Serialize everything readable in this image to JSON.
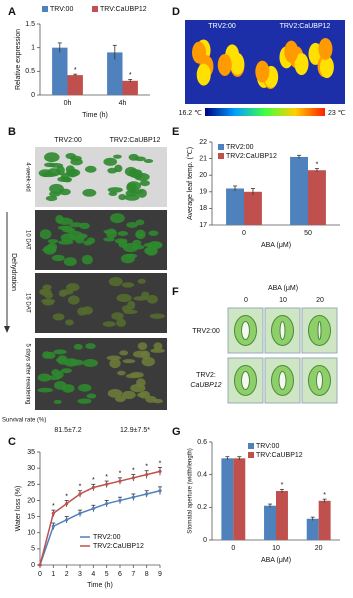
{
  "chart_data": [
    {
      "panel": "A",
      "type": "bar",
      "ylabel": "Relative expression",
      "xlabel": "Time (h)",
      "categories": [
        "0h",
        "4h"
      ],
      "ylim": [
        0,
        1.5
      ],
      "yticks": [
        0,
        0.5,
        1,
        1.5
      ],
      "series": [
        {
          "name": "TRV:00",
          "color": "#4f81bd",
          "values": [
            1.0,
            0.9
          ],
          "errors": [
            0.1,
            0.15
          ]
        },
        {
          "name": "TRV:CaUBP12",
          "color": "#c0504d",
          "values": [
            0.42,
            0.3
          ],
          "errors": [
            0.02,
            0.03
          ],
          "annotations": [
            "*",
            "*"
          ]
        }
      ]
    },
    {
      "panel": "E",
      "type": "bar",
      "ylabel": "Average leaf temp. (℃)",
      "xlabel": "ABA (μM)",
      "categories": [
        "0",
        "50"
      ],
      "ylim": [
        17,
        22
      ],
      "yticks": [
        17,
        18,
        19,
        20,
        21,
        22
      ],
      "series": [
        {
          "name": "TRV2:00",
          "color": "#4f81bd",
          "values": [
            19.2,
            21.1
          ],
          "errors": [
            0.15,
            0.1
          ]
        },
        {
          "name": "TRV2:CaUBP12",
          "color": "#c0504d",
          "values": [
            19.0,
            20.3
          ],
          "errors": [
            0.2,
            0.1
          ],
          "annotations": [
            null,
            "*"
          ]
        }
      ]
    },
    {
      "panel": "C",
      "type": "line",
      "ylabel": "Water loss (%)",
      "xlabel": "Time (h)",
      "x": [
        0,
        1,
        2,
        3,
        4,
        5,
        6,
        7,
        8,
        9
      ],
      "xlim": [
        0,
        9
      ],
      "xticks": [
        0,
        1,
        2,
        3,
        4,
        5,
        6,
        7,
        8,
        9
      ],
      "ylim": [
        0,
        35
      ],
      "yticks": [
        0,
        5,
        10,
        15,
        20,
        25,
        30,
        35
      ],
      "series": [
        {
          "name": "TRV2:00",
          "color": "#4f81bd",
          "values": [
            0,
            12,
            14,
            16,
            17.5,
            19,
            20,
            21,
            22,
            23
          ],
          "errors": [
            0,
            1,
            1,
            1,
            1,
            1,
            1,
            1,
            1,
            1.2
          ]
        },
        {
          "name": "TRV2:CaUBP12",
          "color": "#c0504d",
          "values": [
            0,
            16,
            19,
            22,
            24,
            25,
            26,
            27,
            28,
            29
          ],
          "errors": [
            0,
            1,
            1,
            1,
            1,
            1,
            1,
            1,
            1.2,
            1.2
          ],
          "annotations": [
            null,
            "*",
            "*",
            "*",
            "*",
            "*",
            "*",
            "*",
            "*",
            "*"
          ]
        }
      ]
    },
    {
      "panel": "G",
      "type": "bar",
      "ylabel": "Stomatal aperture (width/length)",
      "xlabel": "ABA (μM)",
      "categories": [
        "0",
        "10",
        "20"
      ],
      "ylim": [
        0,
        0.6
      ],
      "yticks": [
        0,
        0.2,
        0.4,
        0.6
      ],
      "series": [
        {
          "name": "TRV:00",
          "color": "#4f81bd",
          "values": [
            0.5,
            0.21,
            0.13
          ],
          "errors": [
            0.01,
            0.01,
            0.01
          ]
        },
        {
          "name": "TRV:CaUBP12",
          "color": "#c0504d",
          "values": [
            0.5,
            0.3,
            0.24
          ],
          "errors": [
            0.01,
            0.01,
            0.01
          ],
          "annotations": [
            null,
            "*",
            "*"
          ]
        }
      ]
    }
  ],
  "images": {
    "B": {
      "panel": "B",
      "columns": [
        "TRV2:00",
        "TRV2:CaUBP12"
      ],
      "rows": [
        "4-week-old",
        "10 DAT",
        "15 DAT",
        "5 days after rewatering"
      ],
      "group": "Dehydration",
      "survival_label": "Survival rate (%)",
      "survival": [
        "81.5±7.2",
        "12.9±7.5*"
      ]
    },
    "D": {
      "panel": "D",
      "columns": [
        "TRV2:00",
        "TRV2:CaUBP12"
      ],
      "scale": [
        "16.2 ℃",
        "23 ℃"
      ]
    },
    "F": {
      "panel": "F",
      "axis": "ABA (μM)",
      "columns": [
        "0",
        "10",
        "20"
      ],
      "rows": [
        [
          "TRV2:00"
        ],
        [
          "TRV2:",
          "CaUBP12"
        ]
      ]
    }
  }
}
